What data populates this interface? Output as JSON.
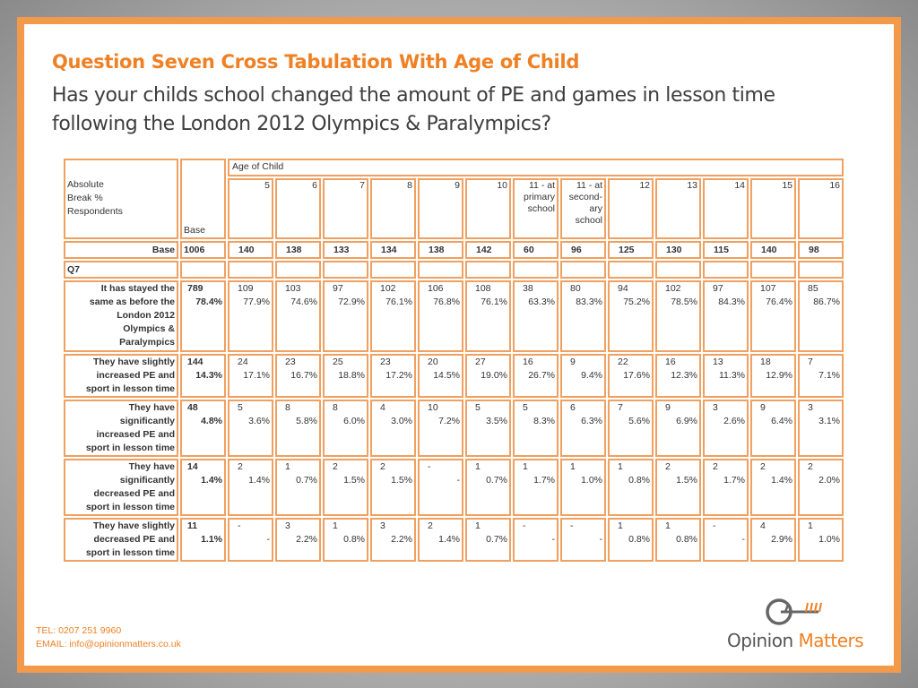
{
  "title": "Question Seven Cross Tabulation With Age of Child",
  "question_line1": "Has your childs school changed the amount of PE and games in lesson time",
  "question_line2": "following the London 2012 Olympics & Paralympics?",
  "table": {
    "corner_lines": [
      "Absolute",
      "Break %",
      "Respondents"
    ],
    "base_header": "Base",
    "age_header": "Age of Child",
    "columns": [
      {
        "lines": [
          "5"
        ]
      },
      {
        "lines": [
          "6"
        ]
      },
      {
        "lines": [
          "7"
        ]
      },
      {
        "lines": [
          "8"
        ]
      },
      {
        "lines": [
          "9"
        ]
      },
      {
        "lines": [
          "10"
        ]
      },
      {
        "lines": [
          "11 - at",
          "primary",
          "school"
        ]
      },
      {
        "lines": [
          "11 - at",
          "second-",
          "ary",
          "school"
        ]
      },
      {
        "lines": [
          "12"
        ]
      },
      {
        "lines": [
          "13"
        ]
      },
      {
        "lines": [
          "14"
        ]
      },
      {
        "lines": [
          "15"
        ]
      },
      {
        "lines": [
          "16"
        ]
      }
    ],
    "base_row": {
      "label": "Base",
      "total": "1006",
      "values": [
        "140",
        "138",
        "133",
        "134",
        "138",
        "142",
        "60",
        "96",
        "125",
        "130",
        "115",
        "140",
        "98"
      ]
    },
    "section_label": "Q7",
    "rows": [
      {
        "label_lines": [
          "It has stayed the",
          "same as before the",
          "London 2012",
          "Olympics &",
          "Paralympics"
        ],
        "total_count": "789",
        "total_pct": "78.4%",
        "counts": [
          "109",
          "103",
          "97",
          "102",
          "106",
          "108",
          "38",
          "80",
          "94",
          "102",
          "97",
          "107",
          "85"
        ],
        "pcts": [
          "77.9%",
          "74.6%",
          "72.9%",
          "76.1%",
          "76.8%",
          "76.1%",
          "63.3%",
          "83.3%",
          "75.2%",
          "78.5%",
          "84.3%",
          "76.4%",
          "86.7%"
        ]
      },
      {
        "label_lines": [
          "They have slightly",
          "increased PE and",
          "sport in lesson time"
        ],
        "total_count": "144",
        "total_pct": "14.3%",
        "counts": [
          "24",
          "23",
          "25",
          "23",
          "20",
          "27",
          "16",
          "9",
          "22",
          "16",
          "13",
          "18",
          "7"
        ],
        "pcts": [
          "17.1%",
          "16.7%",
          "18.8%",
          "17.2%",
          "14.5%",
          "19.0%",
          "26.7%",
          "9.4%",
          "17.6%",
          "12.3%",
          "11.3%",
          "12.9%",
          "7.1%"
        ]
      },
      {
        "label_lines": [
          "They have",
          "significantly",
          "increased PE and",
          "sport in lesson time"
        ],
        "total_count": "48",
        "total_pct": "4.8%",
        "counts": [
          "5",
          "8",
          "8",
          "4",
          "10",
          "5",
          "5",
          "6",
          "7",
          "9",
          "3",
          "9",
          "3"
        ],
        "pcts": [
          "3.6%",
          "5.8%",
          "6.0%",
          "3.0%",
          "7.2%",
          "3.5%",
          "8.3%",
          "6.3%",
          "5.6%",
          "6.9%",
          "2.6%",
          "6.4%",
          "3.1%"
        ]
      },
      {
        "label_lines": [
          "They have",
          "significantly",
          "decreased PE and",
          "sport in lesson time"
        ],
        "total_count": "14",
        "total_pct": "1.4%",
        "counts": [
          "2",
          "1",
          "2",
          "2",
          "-",
          "1",
          "1",
          "1",
          "1",
          "2",
          "2",
          "2",
          "2"
        ],
        "pcts": [
          "1.4%",
          "0.7%",
          "1.5%",
          "1.5%",
          "-",
          "0.7%",
          "1.7%",
          "1.0%",
          "0.8%",
          "1.5%",
          "1.7%",
          "1.4%",
          "2.0%"
        ]
      },
      {
        "label_lines": [
          "They have slightly",
          "decreased PE and",
          "sport in lesson time"
        ],
        "total_count": "11",
        "total_pct": "1.1%",
        "counts": [
          "-",
          "3",
          "1",
          "3",
          "2",
          "1",
          "-",
          "-",
          "1",
          "1",
          "-",
          "4",
          "1"
        ],
        "pcts": [
          "-",
          "2.2%",
          "0.8%",
          "2.2%",
          "1.4%",
          "0.7%",
          "-",
          "-",
          "0.8%",
          "0.8%",
          "-",
          "2.9%",
          "1.0%"
        ]
      }
    ]
  },
  "footer": {
    "tel": "TEL: 0207 251 9960",
    "email": "EMAIL: info@opinionmatters.co.uk"
  },
  "logo": {
    "word1": "Opinion ",
    "word2": "Matters"
  },
  "colors": {
    "accent": "#ef8024",
    "border": "#f0a060",
    "text": "#333333"
  }
}
